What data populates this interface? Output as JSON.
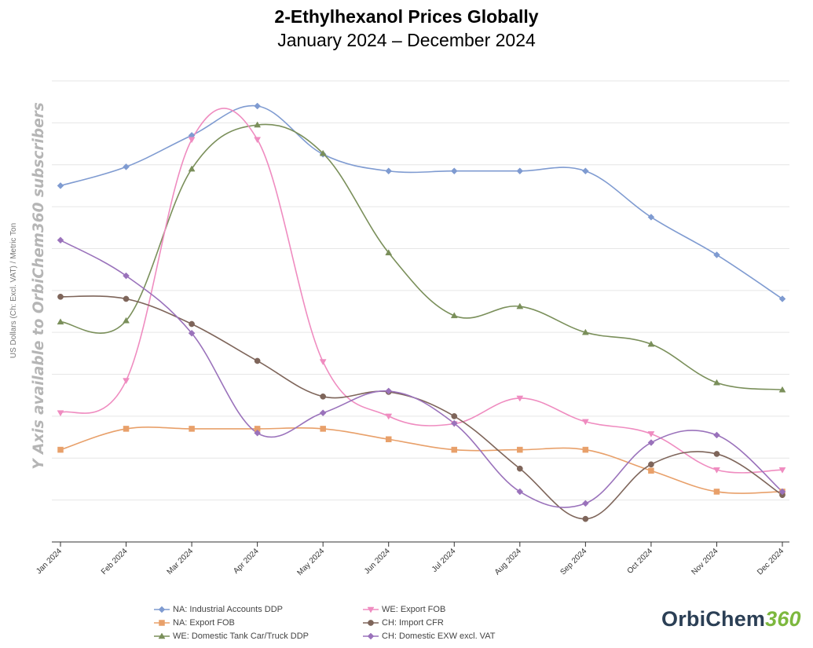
{
  "chart_data": {
    "type": "line",
    "title_bold": "2-Ethylhexanol Prices Globally",
    "subtitle": "January 2024 – December 2024",
    "ylabel": "US Dollars (Ch: Excl. VAT) / Metric Ton",
    "watermark": "Y Axis available to OrbiChem360 subscribers",
    "categories": [
      "Jan 2024",
      "Feb 2024",
      "Mar 2024",
      "Apr 2024",
      "May 2024",
      "Jun 2024",
      "Jul 2024",
      "Aug 2024",
      "Sep 2024",
      "Oct 2024",
      "Nov 2024",
      "Dec 2024"
    ],
    "ylim": [
      0,
      11
    ],
    "grid": true,
    "legend_position": "bottom",
    "series": [
      {
        "name": "NA: Industrial Accounts DDP",
        "color": "#7f9bd1",
        "marker": "diamond",
        "values": [
          8.5,
          8.95,
          9.7,
          10.4,
          9.25,
          8.85,
          8.85,
          8.85,
          8.85,
          7.75,
          6.85,
          5.8
        ]
      },
      {
        "name": "NA: Export FOB",
        "color": "#e8a06a",
        "marker": "square",
        "values": [
          2.2,
          2.7,
          2.7,
          2.7,
          2.7,
          2.45,
          2.2,
          2.2,
          2.2,
          1.7,
          1.2,
          1.2
        ]
      },
      {
        "name": "WE: Domestic Tank Car/Truck DDP",
        "color": "#7a8f5a",
        "marker": "triangle-up",
        "values": [
          5.25,
          5.28,
          8.9,
          9.95,
          9.27,
          6.9,
          5.4,
          5.62,
          5.0,
          4.72,
          3.8,
          3.63
        ]
      },
      {
        "name": "WE: Export FOB",
        "color": "#ef8cc0",
        "marker": "triangle-down",
        "values": [
          3.08,
          3.85,
          9.6,
          9.6,
          4.3,
          3.0,
          2.82,
          3.43,
          2.87,
          2.58,
          1.72,
          1.72
        ]
      },
      {
        "name": "CH: Import CFR",
        "color": "#7e655a",
        "marker": "circle",
        "values": [
          5.85,
          5.8,
          5.2,
          4.32,
          3.47,
          3.58,
          3.0,
          1.75,
          0.55,
          1.85,
          2.1,
          1.12
        ]
      },
      {
        "name": "CH: Domestic EXW excl. VAT",
        "color": "#9a72bb",
        "marker": "diamond",
        "values": [
          7.2,
          6.35,
          4.98,
          2.6,
          3.08,
          3.6,
          2.83,
          1.2,
          0.92,
          2.37,
          2.55,
          1.2
        ]
      }
    ]
  },
  "logo": {
    "text": "OrbiChem",
    "accent": "360"
  }
}
